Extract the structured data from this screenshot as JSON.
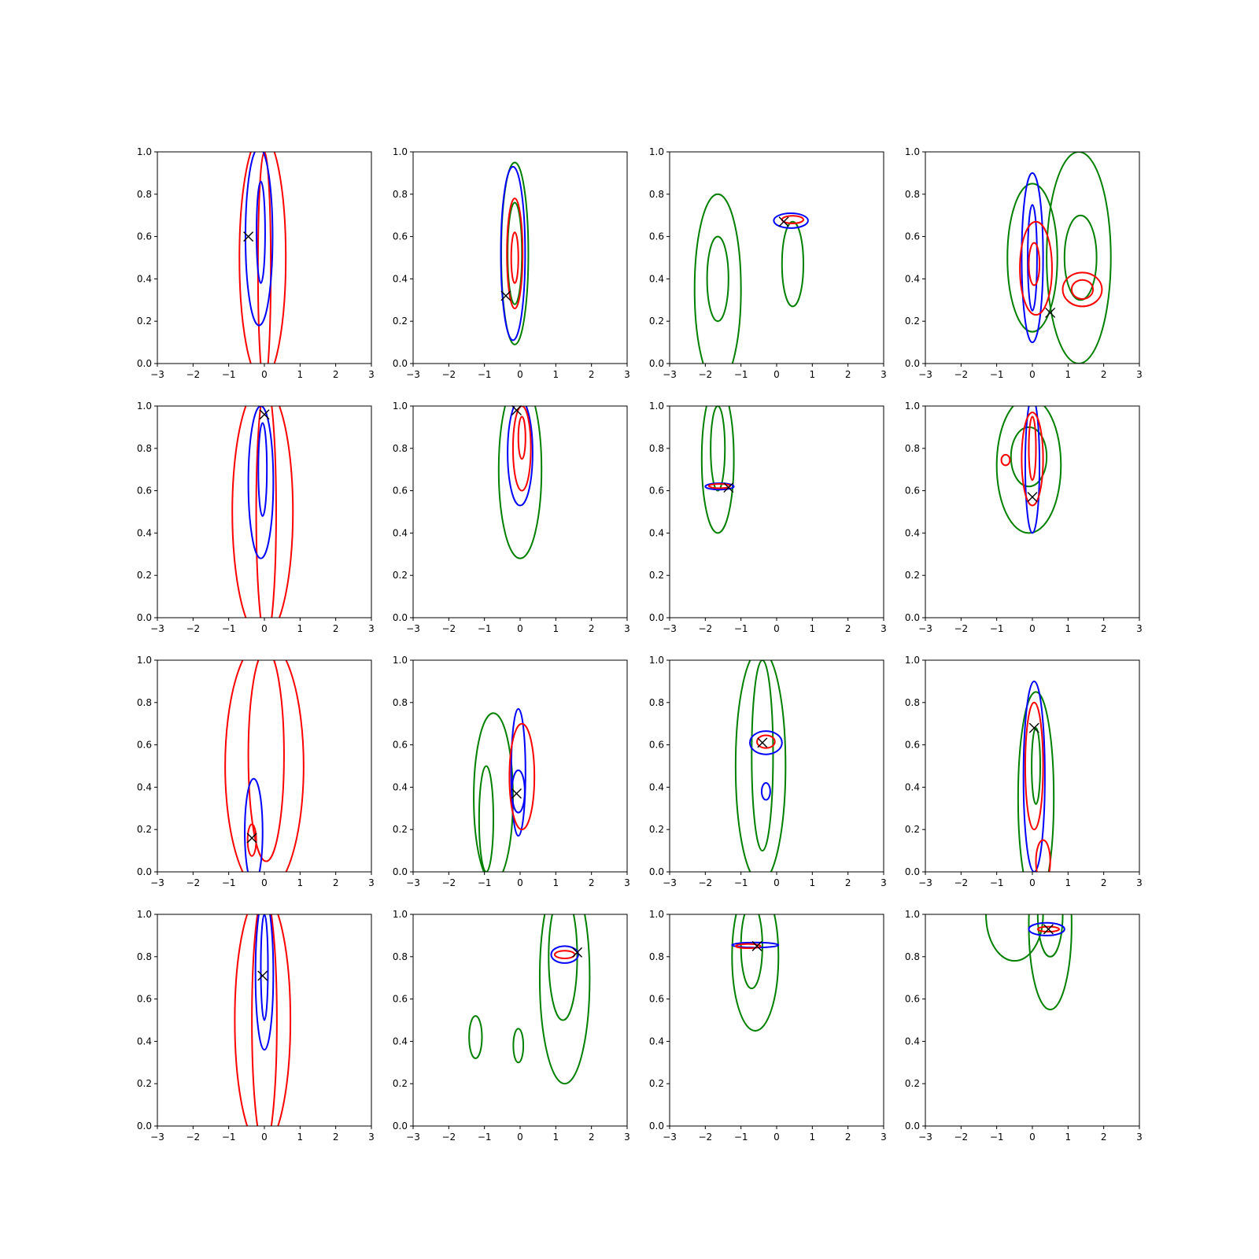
{
  "chart_data": {
    "type": "contour",
    "rows": 4,
    "cols": 4,
    "xlim": [
      -3,
      3
    ],
    "ylim": [
      0,
      1
    ],
    "xticks": [
      -3,
      -2,
      -1,
      0,
      1,
      2,
      3
    ],
    "yticks": [
      0.0,
      0.2,
      0.4,
      0.6,
      0.8,
      1.0
    ],
    "xtick_labels": [
      "−3",
      "−2",
      "−1",
      "0",
      "1",
      "2",
      "3"
    ],
    "ytick_labels": [
      "0.0",
      "0.2",
      "0.4",
      "0.6",
      "0.8",
      "1.0"
    ],
    "colors": {
      "blue": "#0000ff",
      "red": "#ff0000",
      "green": "#008000",
      "marker": "#000000"
    },
    "panels": [
      {
        "marker": [
          -0.45,
          0.6
        ],
        "contours": [
          {
            "color": "red",
            "cx": -0.05,
            "cy": 0.5,
            "rx": 0.65,
            "ry": 0.58
          },
          {
            "color": "red",
            "cx": 0.0,
            "cy": 0.45,
            "rx": 0.18,
            "ry": 0.55
          },
          {
            "color": "blue",
            "cx": -0.15,
            "cy": 0.6,
            "rx": 0.38,
            "ry": 0.42
          },
          {
            "color": "blue",
            "cx": -0.1,
            "cy": 0.62,
            "rx": 0.12,
            "ry": 0.24
          }
        ]
      },
      {
        "marker": [
          -0.4,
          0.32
        ],
        "contours": [
          {
            "color": "green",
            "cx": -0.15,
            "cy": 0.52,
            "rx": 0.38,
            "ry": 0.43
          },
          {
            "color": "blue",
            "cx": -0.2,
            "cy": 0.52,
            "rx": 0.34,
            "ry": 0.41
          },
          {
            "color": "green",
            "cx": -0.15,
            "cy": 0.52,
            "rx": 0.2,
            "ry": 0.24
          },
          {
            "color": "red",
            "cx": -0.15,
            "cy": 0.52,
            "rx": 0.22,
            "ry": 0.26
          },
          {
            "color": "red",
            "cx": -0.15,
            "cy": 0.5,
            "rx": 0.1,
            "ry": 0.12
          }
        ]
      },
      {
        "marker": [
          0.2,
          0.67
        ],
        "contours": [
          {
            "color": "green",
            "cx": -1.65,
            "cy": 0.35,
            "rx": 0.65,
            "ry": 0.45
          },
          {
            "color": "green",
            "cx": -1.65,
            "cy": 0.4,
            "rx": 0.3,
            "ry": 0.2
          },
          {
            "color": "green",
            "cx": 0.45,
            "cy": 0.47,
            "rx": 0.3,
            "ry": 0.2
          },
          {
            "color": "blue",
            "cx": 0.4,
            "cy": 0.675,
            "rx": 0.48,
            "ry": 0.035
          },
          {
            "color": "red",
            "cx": 0.45,
            "cy": 0.68,
            "rx": 0.3,
            "ry": 0.018
          }
        ]
      },
      {
        "marker": [
          0.5,
          0.24
        ],
        "contours": [
          {
            "color": "green",
            "cx": 1.3,
            "cy": 0.5,
            "rx": 0.9,
            "ry": 0.5
          },
          {
            "color": "green",
            "cx": 1.35,
            "cy": 0.5,
            "rx": 0.45,
            "ry": 0.2
          },
          {
            "color": "green",
            "cx": 0.0,
            "cy": 0.5,
            "rx": 0.7,
            "ry": 0.35
          },
          {
            "color": "blue",
            "cx": 0.0,
            "cy": 0.5,
            "rx": 0.3,
            "ry": 0.4
          },
          {
            "color": "blue",
            "cx": 0.0,
            "cy": 0.5,
            "rx": 0.13,
            "ry": 0.25
          },
          {
            "color": "red",
            "cx": 0.1,
            "cy": 0.45,
            "rx": 0.45,
            "ry": 0.22
          },
          {
            "color": "red",
            "cx": 0.05,
            "cy": 0.47,
            "rx": 0.15,
            "ry": 0.1
          },
          {
            "color": "red",
            "cx": 1.4,
            "cy": 0.35,
            "rx": 0.55,
            "ry": 0.08
          },
          {
            "color": "red",
            "cx": 1.4,
            "cy": 0.35,
            "rx": 0.3,
            "ry": 0.045
          }
        ]
      },
      {
        "marker": [
          0.0,
          0.96
        ],
        "contours": [
          {
            "color": "red",
            "cx": -0.05,
            "cy": 0.5,
            "rx": 0.85,
            "ry": 0.6
          },
          {
            "color": "red",
            "cx": 0.05,
            "cy": 0.5,
            "rx": 0.28,
            "ry": 0.6
          },
          {
            "color": "blue",
            "cx": -0.1,
            "cy": 0.64,
            "rx": 0.35,
            "ry": 0.36
          },
          {
            "color": "blue",
            "cx": -0.05,
            "cy": 0.7,
            "rx": 0.12,
            "ry": 0.22
          }
        ]
      },
      {
        "marker": [
          -0.1,
          0.98
        ],
        "contours": [
          {
            "color": "green",
            "cx": 0.0,
            "cy": 0.7,
            "rx": 0.6,
            "ry": 0.42
          },
          {
            "color": "blue",
            "cx": 0.0,
            "cy": 0.78,
            "rx": 0.35,
            "ry": 0.25
          },
          {
            "color": "red",
            "cx": 0.05,
            "cy": 0.8,
            "rx": 0.25,
            "ry": 0.2
          },
          {
            "color": "red",
            "cx": 0.05,
            "cy": 0.85,
            "rx": 0.1,
            "ry": 0.1
          }
        ]
      },
      {
        "marker": [
          -1.35,
          0.615
        ],
        "contours": [
          {
            "color": "green",
            "cx": -1.65,
            "cy": 0.75,
            "rx": 0.45,
            "ry": 0.35
          },
          {
            "color": "green",
            "cx": -1.65,
            "cy": 0.8,
            "rx": 0.2,
            "ry": 0.2
          },
          {
            "color": "blue",
            "cx": -1.6,
            "cy": 0.62,
            "rx": 0.4,
            "ry": 0.015
          },
          {
            "color": "red",
            "cx": -1.6,
            "cy": 0.622,
            "rx": 0.3,
            "ry": 0.01
          }
        ]
      },
      {
        "marker": [
          0.0,
          0.57
        ],
        "contours": [
          {
            "color": "green",
            "cx": -0.1,
            "cy": 0.72,
            "rx": 0.9,
            "ry": 0.32
          },
          {
            "color": "green",
            "cx": -0.1,
            "cy": 0.76,
            "rx": 0.5,
            "ry": 0.14
          },
          {
            "color": "blue",
            "cx": 0.0,
            "cy": 0.72,
            "rx": 0.2,
            "ry": 0.32
          },
          {
            "color": "red",
            "cx": 0.0,
            "cy": 0.75,
            "rx": 0.3,
            "ry": 0.22
          },
          {
            "color": "red",
            "cx": -0.75,
            "cy": 0.745,
            "rx": 0.12,
            "ry": 0.025
          },
          {
            "color": "red",
            "cx": 0.0,
            "cy": 0.8,
            "rx": 0.1,
            "ry": 0.15
          }
        ]
      },
      {
        "marker": [
          -0.35,
          0.16
        ],
        "contours": [
          {
            "color": "red",
            "cx": 0.0,
            "cy": 0.5,
            "rx": 1.1,
            "ry": 0.6
          },
          {
            "color": "red",
            "cx": 0.05,
            "cy": 0.55,
            "rx": 0.5,
            "ry": 0.5
          },
          {
            "color": "blue",
            "cx": -0.3,
            "cy": 0.19,
            "rx": 0.25,
            "ry": 0.25
          },
          {
            "color": "red",
            "cx": -0.35,
            "cy": 0.15,
            "rx": 0.12,
            "ry": 0.075
          }
        ]
      },
      {
        "marker": [
          -0.1,
          0.37
        ],
        "contours": [
          {
            "color": "green",
            "cx": -0.75,
            "cy": 0.35,
            "rx": 0.55,
            "ry": 0.4
          },
          {
            "color": "green",
            "cx": -0.95,
            "cy": 0.25,
            "rx": 0.2,
            "ry": 0.25
          },
          {
            "color": "blue",
            "cx": -0.05,
            "cy": 0.47,
            "rx": 0.2,
            "ry": 0.3
          },
          {
            "color": "red",
            "cx": 0.05,
            "cy": 0.45,
            "rx": 0.35,
            "ry": 0.25
          },
          {
            "color": "blue",
            "cx": -0.05,
            "cy": 0.38,
            "rx": 0.18,
            "ry": 0.1
          }
        ]
      },
      {
        "marker": [
          -0.4,
          0.61
        ],
        "contours": [
          {
            "color": "green",
            "cx": -0.45,
            "cy": 0.5,
            "rx": 0.7,
            "ry": 0.55
          },
          {
            "color": "green",
            "cx": -0.4,
            "cy": 0.55,
            "rx": 0.3,
            "ry": 0.45
          },
          {
            "color": "blue",
            "cx": -0.3,
            "cy": 0.61,
            "rx": 0.45,
            "ry": 0.055
          },
          {
            "color": "red",
            "cx": -0.3,
            "cy": 0.615,
            "rx": 0.25,
            "ry": 0.03
          },
          {
            "color": "blue",
            "cx": -0.3,
            "cy": 0.38,
            "rx": 0.12,
            "ry": 0.04
          }
        ]
      },
      {
        "marker": [
          0.05,
          0.68
        ],
        "contours": [
          {
            "color": "green",
            "cx": 0.1,
            "cy": 0.35,
            "rx": 0.5,
            "ry": 0.5
          },
          {
            "color": "blue",
            "cx": 0.05,
            "cy": 0.45,
            "rx": 0.3,
            "ry": 0.45
          },
          {
            "color": "red",
            "cx": 0.05,
            "cy": 0.5,
            "rx": 0.25,
            "ry": 0.3
          },
          {
            "color": "green",
            "cx": 0.1,
            "cy": 0.5,
            "rx": 0.12,
            "ry": 0.18
          },
          {
            "color": "red",
            "cx": 0.3,
            "cy": 0.05,
            "rx": 0.2,
            "ry": 0.1
          }
        ]
      },
      {
        "marker": [
          -0.05,
          0.71
        ],
        "contours": [
          {
            "color": "red",
            "cx": -0.05,
            "cy": 0.5,
            "rx": 0.78,
            "ry": 0.6
          },
          {
            "color": "red",
            "cx": 0.0,
            "cy": 0.5,
            "rx": 0.35,
            "ry": 0.6
          },
          {
            "color": "blue",
            "cx": 0.0,
            "cy": 0.72,
            "rx": 0.25,
            "ry": 0.36
          },
          {
            "color": "blue",
            "cx": 0.0,
            "cy": 0.75,
            "rx": 0.1,
            "ry": 0.25
          }
        ]
      },
      {
        "marker": [
          1.6,
          0.82
        ],
        "contours": [
          {
            "color": "green",
            "cx": 1.25,
            "cy": 0.7,
            "rx": 0.7,
            "ry": 0.5
          },
          {
            "color": "green",
            "cx": 1.2,
            "cy": 0.8,
            "rx": 0.4,
            "ry": 0.3
          },
          {
            "color": "blue",
            "cx": 1.25,
            "cy": 0.81,
            "rx": 0.38,
            "ry": 0.04
          },
          {
            "color": "red",
            "cx": 1.25,
            "cy": 0.81,
            "rx": 0.28,
            "ry": 0.018
          },
          {
            "color": "green",
            "cx": -1.25,
            "cy": 0.42,
            "rx": 0.18,
            "ry": 0.1
          },
          {
            "color": "green",
            "cx": -0.05,
            "cy": 0.38,
            "rx": 0.14,
            "ry": 0.08
          }
        ]
      },
      {
        "marker": [
          -0.55,
          0.85
        ],
        "contours": [
          {
            "color": "green",
            "cx": -0.6,
            "cy": 0.8,
            "rx": 0.65,
            "ry": 0.35
          },
          {
            "color": "green",
            "cx": -0.7,
            "cy": 0.85,
            "rx": 0.3,
            "ry": 0.2
          },
          {
            "color": "blue",
            "cx": -0.6,
            "cy": 0.855,
            "rx": 0.65,
            "ry": 0.012
          },
          {
            "color": "red",
            "cx": -0.8,
            "cy": 0.85,
            "rx": 0.35,
            "ry": 0.01
          }
        ]
      },
      {
        "marker": [
          0.45,
          0.93
        ],
        "contours": [
          {
            "color": "green",
            "cx": -0.5,
            "cy": 1.0,
            "rx": 0.8,
            "ry": 0.22
          },
          {
            "color": "green",
            "cx": 0.5,
            "cy": 0.95,
            "rx": 0.6,
            "ry": 0.4
          },
          {
            "color": "green",
            "cx": 0.5,
            "cy": 1.0,
            "rx": 0.35,
            "ry": 0.2
          },
          {
            "color": "blue",
            "cx": 0.4,
            "cy": 0.93,
            "rx": 0.5,
            "ry": 0.03
          },
          {
            "color": "red",
            "cx": 0.45,
            "cy": 0.93,
            "rx": 0.3,
            "ry": 0.012
          }
        ]
      }
    ]
  }
}
